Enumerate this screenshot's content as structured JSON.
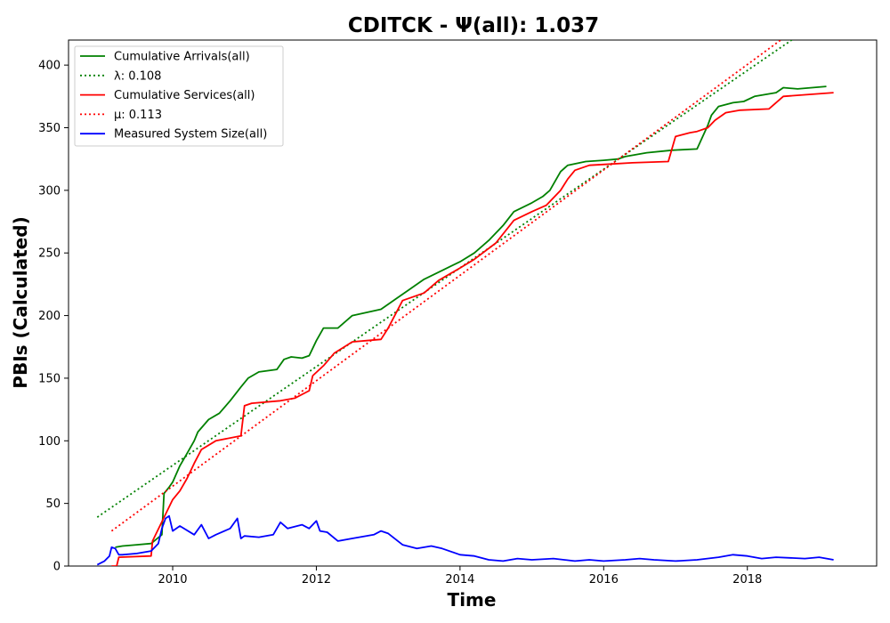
{
  "chart_data": {
    "type": "line",
    "title": "CDITCK -  Ψ(all): 1.037",
    "xlabel": "Time",
    "ylabel": "PBIs (Calculated)",
    "xlim": [
      2008.55,
      2019.8
    ],
    "ylim": [
      0,
      420
    ],
    "x_ticks": [
      2010,
      2012,
      2014,
      2016,
      2018
    ],
    "y_ticks": [
      0,
      50,
      100,
      150,
      200,
      250,
      300,
      350,
      400
    ],
    "grid": false,
    "legend_position": "upper-left",
    "series": [
      {
        "name": "Cumulative Arrivals(all)",
        "color": "#008000",
        "style": "solid",
        "x": [
          2009.2,
          2009.3,
          2009.5,
          2009.7,
          2009.85,
          2009.88,
          2009.95,
          2010.0,
          2010.1,
          2010.2,
          2010.3,
          2010.35,
          2010.5,
          2010.65,
          2010.8,
          2010.95,
          2011.05,
          2011.2,
          2011.45,
          2011.55,
          2011.65,
          2011.8,
          2011.9,
          2012.0,
          2012.1,
          2012.3,
          2012.5,
          2012.9,
          2013.1,
          2013.3,
          2013.5,
          2013.75,
          2014.0,
          2014.2,
          2014.4,
          2014.6,
          2014.75,
          2015.0,
          2015.15,
          2015.25,
          2015.4,
          2015.5,
          2015.75,
          2016.0,
          2016.2,
          2016.3,
          2016.6,
          2016.95,
          2017.3,
          2017.45,
          2017.5,
          2017.6,
          2017.8,
          2017.95,
          2018.1,
          2018.4,
          2018.5,
          2018.7,
          2019.1
        ],
        "values": [
          15,
          16,
          17,
          18,
          25,
          58,
          63,
          67,
          80,
          90,
          100,
          107,
          117,
          122,
          132,
          143,
          150,
          155,
          157,
          165,
          167,
          166,
          168,
          180,
          190,
          190,
          200,
          205,
          213,
          221,
          229,
          236,
          243,
          250,
          260,
          272,
          283,
          290,
          295,
          300,
          315,
          320,
          323,
          324,
          325,
          327,
          330,
          332,
          333,
          352,
          360,
          367,
          370,
          371,
          375,
          378,
          382,
          381,
          383
        ]
      },
      {
        "name": "λ: 0.108",
        "color": "#008000",
        "style": "dotted",
        "x": [
          2008.95,
          2019.2
        ],
        "values": [
          39,
          443
        ]
      },
      {
        "name": "Cumulative Services(all)",
        "color": "#ff0000",
        "style": "solid",
        "x": [
          2009.15,
          2009.22,
          2009.25,
          2009.7,
          2009.72,
          2010.0,
          2010.1,
          2010.2,
          2010.3,
          2010.4,
          2010.6,
          2010.95,
          2011.0,
          2011.1,
          2011.5,
          2011.7,
          2011.9,
          2011.95,
          2012.1,
          2012.25,
          2012.5,
          2012.7,
          2012.9,
          2013.0,
          2013.2,
          2013.5,
          2013.7,
          2014.0,
          2014.2,
          2014.5,
          2014.75,
          2015.0,
          2015.2,
          2015.4,
          2015.5,
          2015.6,
          2015.8,
          2016.1,
          2016.4,
          2016.9,
          2017.0,
          2017.2,
          2017.3,
          2017.45,
          2017.55,
          2017.7,
          2017.9,
          2018.3,
          2018.5,
          2019.2
        ],
        "values": [
          0,
          0,
          7,
          8,
          20,
          53,
          60,
          70,
          82,
          93,
          100,
          104,
          128,
          130,
          132,
          134,
          140,
          152,
          160,
          170,
          179,
          180,
          181,
          190,
          212,
          218,
          228,
          238,
          245,
          258,
          276,
          283,
          288,
          300,
          309,
          316,
          320,
          321,
          322,
          323,
          343,
          346,
          347,
          350,
          356,
          362,
          364,
          365,
          375,
          378
        ]
      },
      {
        "name": "μ: 0.113",
        "color": "#ff0000",
        "style": "dotted",
        "x": [
          2009.15,
          2019.2
        ],
        "values": [
          28,
          451
        ]
      },
      {
        "name": "Measured System Size(all)",
        "color": "#0000ff",
        "style": "solid",
        "x": [
          2008.95,
          2009.05,
          2009.12,
          2009.15,
          2009.2,
          2009.25,
          2009.3,
          2009.5,
          2009.7,
          2009.8,
          2009.85,
          2009.9,
          2009.95,
          2010.0,
          2010.1,
          2010.3,
          2010.4,
          2010.5,
          2010.6,
          2010.8,
          2010.9,
          2010.95,
          2011.0,
          2011.2,
          2011.4,
          2011.5,
          2011.6,
          2011.8,
          2011.9,
          2012.0,
          2012.05,
          2012.15,
          2012.3,
          2012.5,
          2012.8,
          2012.9,
          2013.0,
          2013.2,
          2013.4,
          2013.6,
          2013.75,
          2014.0,
          2014.2,
          2014.4,
          2014.6,
          2014.8,
          2015.0,
          2015.3,
          2015.6,
          2015.8,
          2016.0,
          2016.3,
          2016.5,
          2016.7,
          2017.0,
          2017.3,
          2017.6,
          2017.8,
          2018.0,
          2018.2,
          2018.4,
          2018.8,
          2019.0,
          2019.2
        ],
        "values": [
          1,
          4,
          8,
          15,
          14,
          9,
          9,
          10,
          12,
          18,
          30,
          38,
          40,
          28,
          32,
          25,
          33,
          22,
          25,
          30,
          38,
          22,
          24,
          23,
          25,
          35,
          30,
          33,
          30,
          36,
          28,
          27,
          20,
          22,
          25,
          28,
          26,
          17,
          14,
          16,
          14,
          9,
          8,
          5,
          4,
          6,
          5,
          6,
          4,
          5,
          4,
          5,
          6,
          5,
          4,
          5,
          7,
          9,
          8,
          6,
          7,
          6,
          7,
          5
        ]
      }
    ]
  }
}
